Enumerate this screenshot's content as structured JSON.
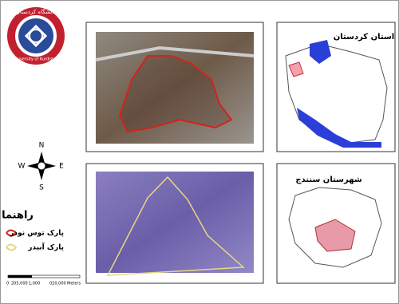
{
  "logo": {
    "name_fa": "دانشگاه کردستان",
    "name_en": "University of Kurdistan"
  },
  "maps": {
    "province_title": "استان کردستان",
    "county_title": "شهرستان سنندج"
  },
  "compass": {
    "north": "N",
    "south": "S",
    "east": "E",
    "west": "W"
  },
  "legend": {
    "title": "راهنما",
    "items": [
      "پارک توس نوذر",
      "پارک آبیدر"
    ]
  },
  "scale": {
    "labels": [
      "0",
      "205,000",
      "1,000",
      "020,000",
      "Meters"
    ]
  }
}
